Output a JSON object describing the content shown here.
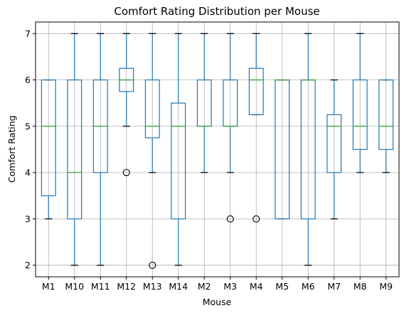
{
  "chart_data": {
    "type": "box",
    "title": "Comfort Rating Distribution per Mouse",
    "xlabel": "Mouse",
    "ylabel": "Comfort Rating",
    "ylim": [
      1.75,
      7.25
    ],
    "yticks": [
      2,
      3,
      4,
      5,
      6,
      7
    ],
    "grid": true,
    "colors": {
      "box": "#1f77b4",
      "median": "#2ca02c",
      "grid": "#b0b0b0",
      "outlier": "#000000"
    },
    "categories": [
      "M1",
      "M10",
      "M11",
      "M12",
      "M13",
      "M14",
      "M2",
      "M3",
      "M4",
      "M5",
      "M6",
      "M7",
      "M8",
      "M9"
    ],
    "boxes": [
      {
        "label": "M1",
        "whisker_low": 3,
        "q1": 3.5,
        "median": 5,
        "q3": 6,
        "whisker_high": 6,
        "outliers": []
      },
      {
        "label": "M10",
        "whisker_low": 2,
        "q1": 3,
        "median": 4,
        "q3": 6,
        "whisker_high": 7,
        "outliers": []
      },
      {
        "label": "M11",
        "whisker_low": 2,
        "q1": 4,
        "median": 5,
        "q3": 6,
        "whisker_high": 7,
        "outliers": []
      },
      {
        "label": "M12",
        "whisker_low": 5,
        "q1": 5.75,
        "median": 6,
        "q3": 6.25,
        "whisker_high": 7,
        "outliers": [
          4
        ]
      },
      {
        "label": "M13",
        "whisker_low": 4,
        "q1": 4.75,
        "median": 5,
        "q3": 6,
        "whisker_high": 7,
        "outliers": [
          2
        ]
      },
      {
        "label": "M14",
        "whisker_low": 2,
        "q1": 3,
        "median": 5,
        "q3": 5.5,
        "whisker_high": 7,
        "outliers": []
      },
      {
        "label": "M2",
        "whisker_low": 4,
        "q1": 5,
        "median": 5,
        "q3": 6,
        "whisker_high": 7,
        "outliers": []
      },
      {
        "label": "M3",
        "whisker_low": 4,
        "q1": 5,
        "median": 5,
        "q3": 6,
        "whisker_high": 7,
        "outliers": [
          3
        ]
      },
      {
        "label": "M4",
        "whisker_low": 5.25,
        "q1": 5.25,
        "median": 6,
        "q3": 6.25,
        "whisker_high": 7,
        "outliers": [
          3
        ]
      },
      {
        "label": "M5",
        "whisker_low": 3,
        "q1": 3,
        "median": 6,
        "q3": 6,
        "whisker_high": 6,
        "outliers": []
      },
      {
        "label": "M6",
        "whisker_low": 2,
        "q1": 3,
        "median": 6,
        "q3": 6,
        "whisker_high": 7,
        "outliers": []
      },
      {
        "label": "M7",
        "whisker_low": 3,
        "q1": 4,
        "median": 5,
        "q3": 5.25,
        "whisker_high": 6,
        "outliers": []
      },
      {
        "label": "M8",
        "whisker_low": 4,
        "q1": 4.5,
        "median": 5,
        "q3": 6,
        "whisker_high": 7,
        "outliers": []
      },
      {
        "label": "M9",
        "whisker_low": 4,
        "q1": 4.5,
        "median": 5,
        "q3": 6,
        "whisker_high": 6,
        "outliers": []
      }
    ]
  }
}
